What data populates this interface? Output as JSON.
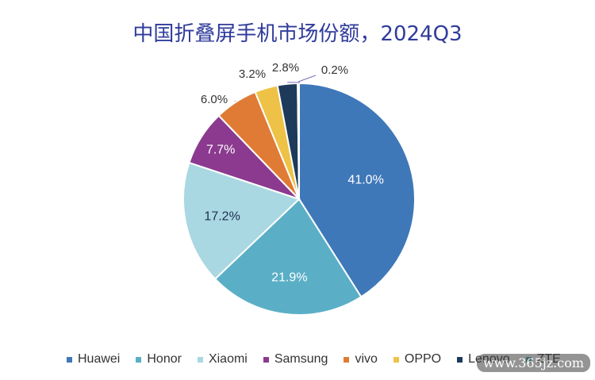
{
  "chart_data": {
    "type": "pie",
    "title": "中国折叠屏手机市场份额，2024Q3",
    "series": [
      {
        "name": "Huawei",
        "value": 41.0,
        "label": "41.0%",
        "color": "#3f78b8"
      },
      {
        "name": "Honor",
        "value": 21.9,
        "label": "21.9%",
        "color": "#5aafc6"
      },
      {
        "name": "Xiaomi",
        "value": 17.2,
        "label": "17.2%",
        "color": "#a9d8e2"
      },
      {
        "name": "Samsung",
        "value": 7.7,
        "label": "7.7%",
        "color": "#8b3a8f"
      },
      {
        "name": "vivo",
        "value": 6.0,
        "label": "6.0%",
        "color": "#e07b35"
      },
      {
        "name": "OPPO",
        "value": 3.2,
        "label": "3.2%",
        "color": "#eec246"
      },
      {
        "name": "Lenovo",
        "value": 2.8,
        "label": "2.8%",
        "color": "#1d3a5a"
      },
      {
        "name": "ZTE",
        "value": 0.2,
        "label": "0.2%",
        "color": "#4aa3a8"
      }
    ],
    "legend_position": "bottom"
  },
  "watermark": "www.365jz.com"
}
